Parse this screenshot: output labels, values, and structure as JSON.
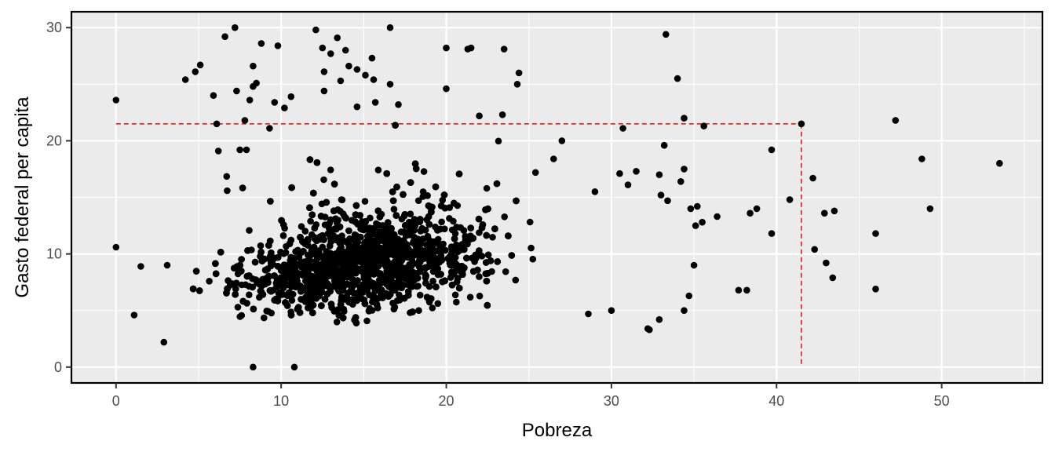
{
  "chart_data": {
    "type": "scatter",
    "title": "",
    "xlabel": "Pobreza",
    "ylabel": "Gasto federal per capita",
    "xlim": [
      -2.7,
      56.1
    ],
    "ylim": [
      -1.4,
      31.4
    ],
    "x_ticks": [
      0,
      10,
      20,
      30,
      40,
      50
    ],
    "y_ticks": [
      0,
      10,
      20,
      30
    ],
    "x_tick_labels": [
      "0",
      "10",
      "20",
      "30",
      "40",
      "50"
    ],
    "y_tick_labels": [
      "0",
      "10",
      "20",
      "30"
    ],
    "grid": true,
    "legend": "none",
    "colors": {
      "panel": "#ebebeb",
      "gridline": "#ffffff",
      "point": "#000000",
      "reference": "#e41a1c",
      "border": "#000000"
    },
    "reference_point": {
      "x": 41.5,
      "y": 21.5,
      "style": "dashed"
    },
    "series": [
      {
        "points": [
          [
            0,
            23.6
          ],
          [
            0,
            10.6
          ],
          [
            1.1,
            4.6
          ],
          [
            1.5,
            8.9
          ],
          [
            2.9,
            2.2
          ],
          [
            3.1,
            9.0
          ],
          [
            4.2,
            25.4
          ],
          [
            4.8,
            26.1
          ],
          [
            5.1,
            26.7
          ],
          [
            5.9,
            24.0
          ],
          [
            6.1,
            21.5
          ],
          [
            6.2,
            19.1
          ],
          [
            6.6,
            29.2
          ],
          [
            7.2,
            30.0
          ],
          [
            7.3,
            24.4
          ],
          [
            7.5,
            19.2
          ],
          [
            7.8,
            21.8
          ],
          [
            7.9,
            19.2
          ],
          [
            8.1,
            23.6
          ],
          [
            8.3,
            24.8
          ],
          [
            8.3,
            26.6
          ],
          [
            8.5,
            25.1
          ],
          [
            8.8,
            28.6
          ],
          [
            9.8,
            28.4
          ],
          [
            9.3,
            21.1
          ],
          [
            9.6,
            23.4
          ],
          [
            10.2,
            22.9
          ],
          [
            10.6,
            23.9
          ],
          [
            8.3,
            0.0
          ],
          [
            10.8,
            0.0
          ],
          [
            12.1,
            29.8
          ],
          [
            12.5,
            28.2
          ],
          [
            12.6,
            26.1
          ],
          [
            13.0,
            27.7
          ],
          [
            13.4,
            29.1
          ],
          [
            13.6,
            25.3
          ],
          [
            13.9,
            28.0
          ],
          [
            14.1,
            26.6
          ],
          [
            14.6,
            26.3
          ],
          [
            15.1,
            25.8
          ],
          [
            15.5,
            27.3
          ],
          [
            15.6,
            25.4
          ],
          [
            16.6,
            30.0
          ],
          [
            16.6,
            25.0
          ],
          [
            17.1,
            23.2
          ],
          [
            15.7,
            23.4
          ],
          [
            14.6,
            23.0
          ],
          [
            12.6,
            24.4
          ],
          [
            20.0,
            28.2
          ],
          [
            21.3,
            28.1
          ],
          [
            21.5,
            28.2
          ],
          [
            23.5,
            28.1
          ],
          [
            24.4,
            26.0
          ],
          [
            24.3,
            25.0
          ],
          [
            20.0,
            24.6
          ],
          [
            22.0,
            22.2
          ],
          [
            23.4,
            22.3
          ],
          [
            33.3,
            29.4
          ],
          [
            34.0,
            25.5
          ],
          [
            34.4,
            22.0
          ],
          [
            35.6,
            21.3
          ],
          [
            30.7,
            21.1
          ],
          [
            41.5,
            21.5
          ],
          [
            47.2,
            21.8
          ],
          [
            48.8,
            18.4
          ],
          [
            53.5,
            18.0
          ],
          [
            39.7,
            19.2
          ],
          [
            42.2,
            16.7
          ],
          [
            40.8,
            14.8
          ],
          [
            38.8,
            14.0
          ],
          [
            38.4,
            13.6
          ],
          [
            36.4,
            13.3
          ],
          [
            42.9,
            13.6
          ],
          [
            43.5,
            13.8
          ],
          [
            49.3,
            14.0
          ],
          [
            39.7,
            11.8
          ],
          [
            46.0,
            11.8
          ],
          [
            42.3,
            10.4
          ],
          [
            43.0,
            9.2
          ],
          [
            43.4,
            7.9
          ],
          [
            46.0,
            6.9
          ],
          [
            37.7,
            6.8
          ],
          [
            38.2,
            6.8
          ],
          [
            33.2,
            19.6
          ],
          [
            34.4,
            17.5
          ],
          [
            34.2,
            16.4
          ],
          [
            33.4,
            14.7
          ],
          [
            34.8,
            14.0
          ],
          [
            35.2,
            14.2
          ],
          [
            35.1,
            12.5
          ],
          [
            35.5,
            12.8
          ],
          [
            35.0,
            9.0
          ],
          [
            34.7,
            6.3
          ],
          [
            34.4,
            5.0
          ],
          [
            32.9,
            4.2
          ],
          [
            32.2,
            3.4
          ],
          [
            32.3,
            3.3
          ],
          [
            28.6,
            4.7
          ],
          [
            30.0,
            5.0
          ],
          [
            27.0,
            20.0
          ],
          [
            26.5,
            18.4
          ],
          [
            25.4,
            17.2
          ],
          [
            29.0,
            15.5
          ],
          [
            30.5,
            17.1
          ],
          [
            31.5,
            17.3
          ],
          [
            32.9,
            17.0
          ],
          [
            33.0,
            15.2
          ],
          [
            31.0,
            16.1
          ]
        ]
      }
    ]
  }
}
